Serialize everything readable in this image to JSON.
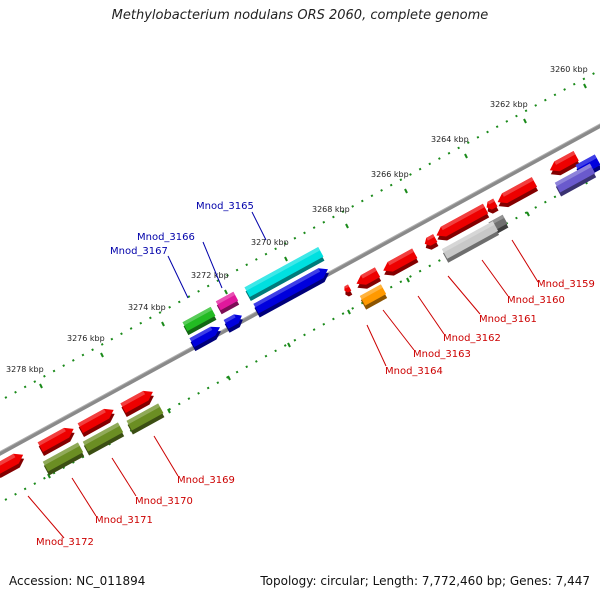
{
  "title": "Methylobacterium nodulans ORS 2060, complete genome",
  "footer": {
    "accession": "Accession: NC_011894",
    "summary": "Topology: circular; Length: 7,772,460 bp; Genes: 7,447"
  },
  "kbp_ticks": [
    "3260 kbp",
    "3262 kbp",
    "3264 kbp",
    "3266 kbp",
    "3268 kbp",
    "3270 kbp",
    "3272 kbp",
    "3274 kbp",
    "3276 kbp",
    "3278 kbp"
  ],
  "gene_labels": [
    {
      "id": "Mnod_3159",
      "color": "#cc0000"
    },
    {
      "id": "Mnod_3160",
      "color": "#cc0000"
    },
    {
      "id": "Mnod_3161",
      "color": "#cc0000"
    },
    {
      "id": "Mnod_3162",
      "color": "#cc0000"
    },
    {
      "id": "Mnod_3163",
      "color": "#cc0000"
    },
    {
      "id": "Mnod_3164",
      "color": "#cc0000"
    },
    {
      "id": "Mnod_3165",
      "color": "#0000aa"
    },
    {
      "id": "Mnod_3166",
      "color": "#0000aa"
    },
    {
      "id": "Mnod_3167",
      "color": "#0000aa"
    },
    {
      "id": "Mnod_3169",
      "color": "#cc0000"
    },
    {
      "id": "Mnod_3170",
      "color": "#cc0000"
    },
    {
      "id": "Mnod_3171",
      "color": "#cc0000"
    },
    {
      "id": "Mnod_3172",
      "color": "#cc0000"
    }
  ],
  "colors": {
    "backbone": "#8a8a8a",
    "tick_dot": "#1a8a1a",
    "red": "#ee0000",
    "blue": "#0000dd",
    "cyan": "#00e0e0",
    "green": "#22bb22",
    "magenta": "#e0189c",
    "olive": "#6b8e23",
    "orange": "#ff9900",
    "light_gray": "#c8c8c8",
    "dark_gray": "#707070",
    "slate": "#6a5acd"
  }
}
